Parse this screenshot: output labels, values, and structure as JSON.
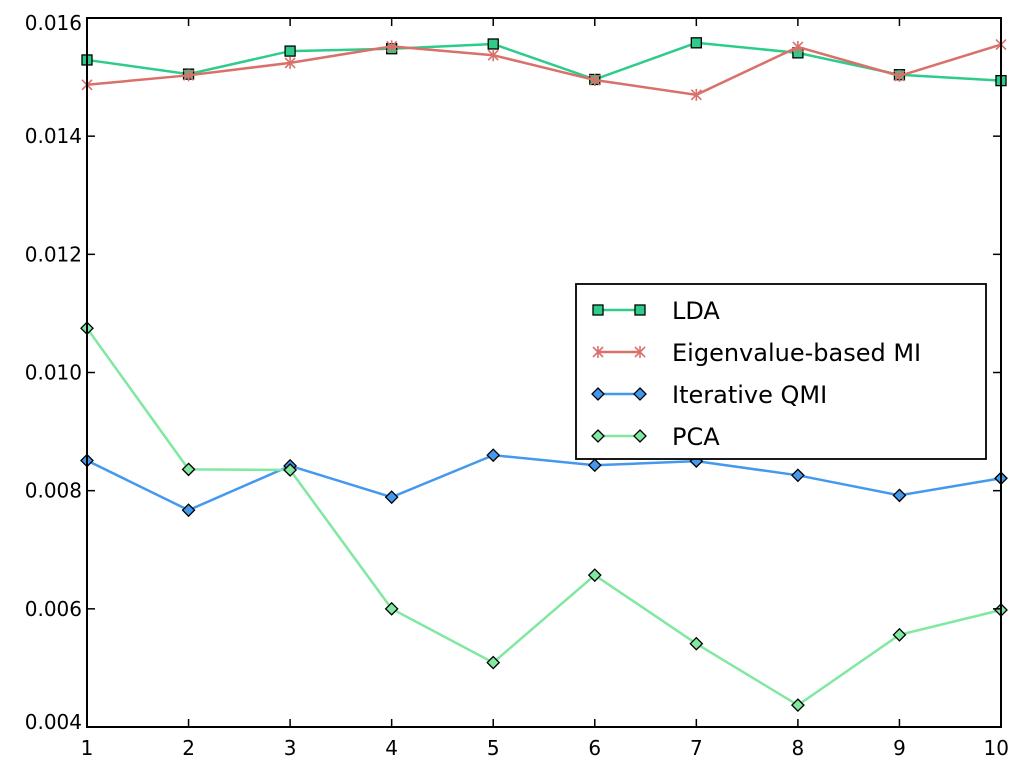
{
  "chart_data": {
    "type": "line",
    "title": "",
    "xlabel": "",
    "ylabel": "",
    "x": [
      1,
      2,
      3,
      4,
      5,
      6,
      7,
      8,
      9,
      10
    ],
    "xlim": [
      1,
      10
    ],
    "ylim": [
      0.004,
      0.016
    ],
    "xticks": [
      1,
      2,
      3,
      4,
      5,
      6,
      7,
      8,
      9,
      10
    ],
    "xtick_labels": [
      "1",
      "2",
      "3",
      "4",
      "5",
      "6",
      "7",
      "8",
      "9",
      "10"
    ],
    "yticks": [
      0.004,
      0.006,
      0.008,
      0.01,
      0.012,
      0.014,
      0.016
    ],
    "ytick_labels": [
      "0.004",
      "0.006",
      "0.008",
      "0.010",
      "0.012",
      "0.014",
      "0.016"
    ],
    "grid": false,
    "legend_position": "center-right",
    "series": [
      {
        "name": "LDA",
        "marker": "square",
        "color": "#2ecc8a",
        "values": [
          0.01529,
          0.01505,
          0.01544,
          0.01548,
          0.01556,
          0.01496,
          0.01558,
          0.01541,
          0.01504,
          0.01494
        ]
      },
      {
        "name": "Eigenvalue-based MI",
        "marker": "x",
        "color": "#d9706a",
        "values": [
          0.01487,
          0.01503,
          0.01524,
          0.01552,
          0.01537,
          0.01495,
          0.0147,
          0.01551,
          0.01502,
          0.01555
        ]
      },
      {
        "name": "Iterative QMI",
        "marker": "diamond",
        "color": "#4499ee",
        "values": [
          0.00851,
          0.00767,
          0.00842,
          0.00789,
          0.0086,
          0.00843,
          0.0085,
          0.00826,
          0.00792,
          0.00821
        ]
      },
      {
        "name": "PCA",
        "marker": "diamond",
        "color": "#80e8a0",
        "values": [
          0.01075,
          0.00836,
          0.00835,
          0.006,
          0.00509,
          0.00657,
          0.00541,
          0.00437,
          0.00556,
          0.00598
        ]
      }
    ]
  }
}
